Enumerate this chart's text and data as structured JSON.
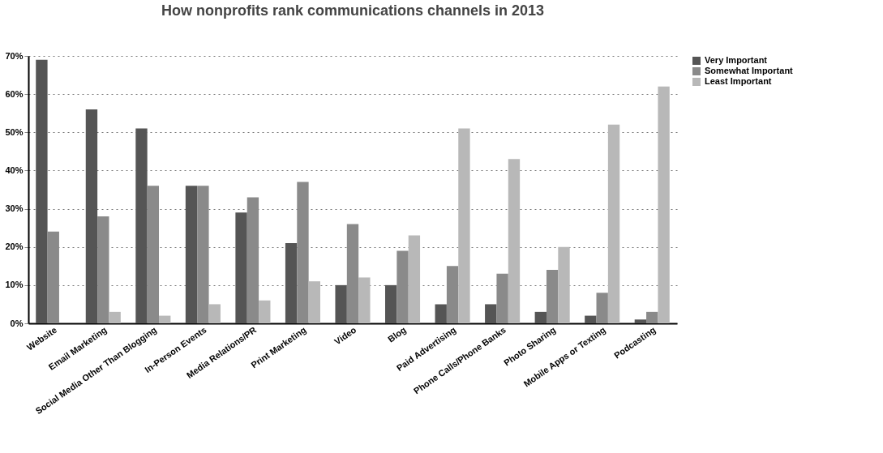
{
  "chart_data": {
    "type": "bar",
    "title": "How nonprofits rank communications channels in 2013",
    "categories": [
      "Website",
      "Email Marketing",
      "Social Media Other Than Blogging",
      "In-Person Events",
      "Media Relations/PR",
      "Print Marketing",
      "Video",
      "Blog",
      "Paid Advertising",
      "Phone Calls/Phone Banks",
      "Photo Sharing",
      "Mobile Apps or Texting",
      "Podcasting"
    ],
    "series": [
      {
        "name": "Very Important",
        "color": "#555555",
        "values": [
          69,
          56,
          51,
          36,
          29,
          21,
          10,
          10,
          5,
          5,
          3,
          2,
          1
        ]
      },
      {
        "name": "Somewhat Important",
        "color": "#8a8a8a",
        "values": [
          24,
          28,
          36,
          36,
          33,
          37,
          26,
          19,
          15,
          13,
          14,
          8,
          3
        ]
      },
      {
        "name": "Least Important",
        "color": "#b8b8b8",
        "values": [
          0,
          3,
          2,
          5,
          6,
          11,
          12,
          23,
          51,
          43,
          20,
          52,
          62
        ]
      }
    ],
    "ylim": [
      0,
      70
    ],
    "yticks": [
      {
        "value": 0,
        "label": "0%"
      },
      {
        "value": 10,
        "label": "10%"
      },
      {
        "value": 20,
        "label": "20%"
      },
      {
        "value": 30,
        "label": "30%"
      },
      {
        "value": 40,
        "label": "40%"
      },
      {
        "value": 50,
        "label": "50%"
      },
      {
        "value": 60,
        "label": "60%"
      },
      {
        "value": 70,
        "label": "70%"
      }
    ],
    "grid": "y",
    "legend": "right"
  }
}
